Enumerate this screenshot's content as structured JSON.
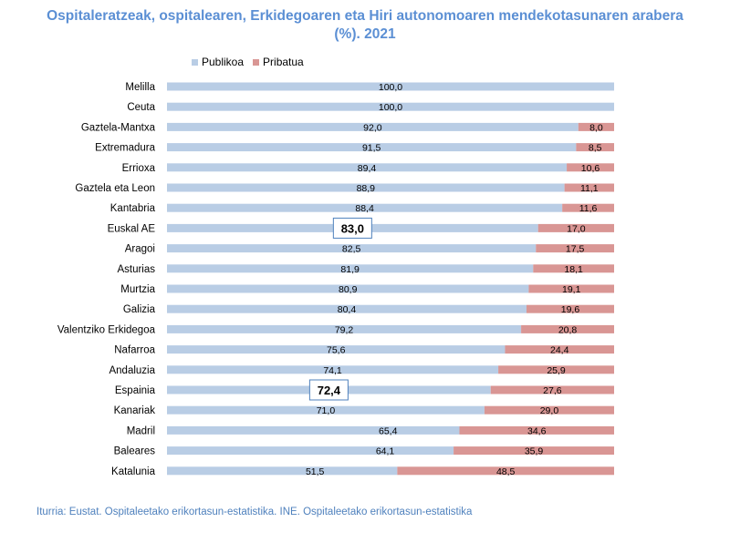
{
  "chart_data": {
    "type": "bar",
    "stacked": true,
    "orientation": "horizontal",
    "title": "Ospitaleratzeak, ospitalearen, Erkidegoaren eta Hiri autonomoaren mendekotasunaren arabera (%). 2021",
    "title_lines": [
      "Ospitaleratzeak, ospitalearen, Erkidegoaren eta Hiri autonomoaren mendekotasunaren arabera",
      "(%). 2021"
    ],
    "xlabel": "",
    "ylabel": "",
    "xlim": [
      0,
      100
    ],
    "legend_position": "top",
    "categories": [
      "Melilla",
      "Ceuta",
      "Gaztela-Mantxa",
      "Extremadura",
      "Errioxa",
      "Gaztela eta Leon",
      "Kantabria",
      "Euskal AE",
      "Aragoi",
      "Asturias",
      "Murtzia",
      "Galizia",
      "Valentziko Erkidegoa",
      "Nafarroa",
      "Andaluzia",
      "Espainia",
      "Kanariak",
      "Madril",
      "Baleares",
      "Katalunia"
    ],
    "series": [
      {
        "name": "Publikoa",
        "color": "#b9cde5",
        "values": [
          100,
          100,
          92,
          91.5,
          89.4,
          88.9,
          88.4,
          83,
          82.5,
          81.9,
          80.9,
          80.4,
          79.2,
          75.6,
          74.1,
          72.4,
          71,
          65.4,
          64.1,
          51.5
        ],
        "labels": [
          "100,0",
          "100,0",
          "92,0",
          "91,5",
          "89,4",
          "88,9",
          "88,4",
          "83,0",
          "82,5",
          "81,9",
          "80,9",
          "80,4",
          "79,2",
          "75,6",
          "74,1",
          "72,4",
          "71,0",
          "65,4",
          "64,1",
          "51,5"
        ]
      },
      {
        "name": "Pribatua",
        "color": "#d99694",
        "values": [
          0,
          0,
          8,
          8.5,
          10.6,
          11.1,
          11.6,
          17,
          17.5,
          18.1,
          19.1,
          19.6,
          20.8,
          24.4,
          25.9,
          27.6,
          29,
          34.6,
          35.9,
          48.5
        ],
        "labels": [
          "",
          "",
          "8,0",
          "8,5",
          "10,6",
          "11,1",
          "11,6",
          "17,0",
          "17,5",
          "18,1",
          "19,1",
          "19,6",
          "20,8",
          "24,4",
          "25,9",
          "27,6",
          "29,0",
          "34,6",
          "35,9",
          "48,5"
        ]
      }
    ],
    "highlighted": [
      "Euskal AE",
      "Espainia"
    ],
    "source": "Iturria: Eustat. Ospitaleetako erikortasun-estatistika. INE. Ospitaleetako erikortasun-estatistika"
  }
}
